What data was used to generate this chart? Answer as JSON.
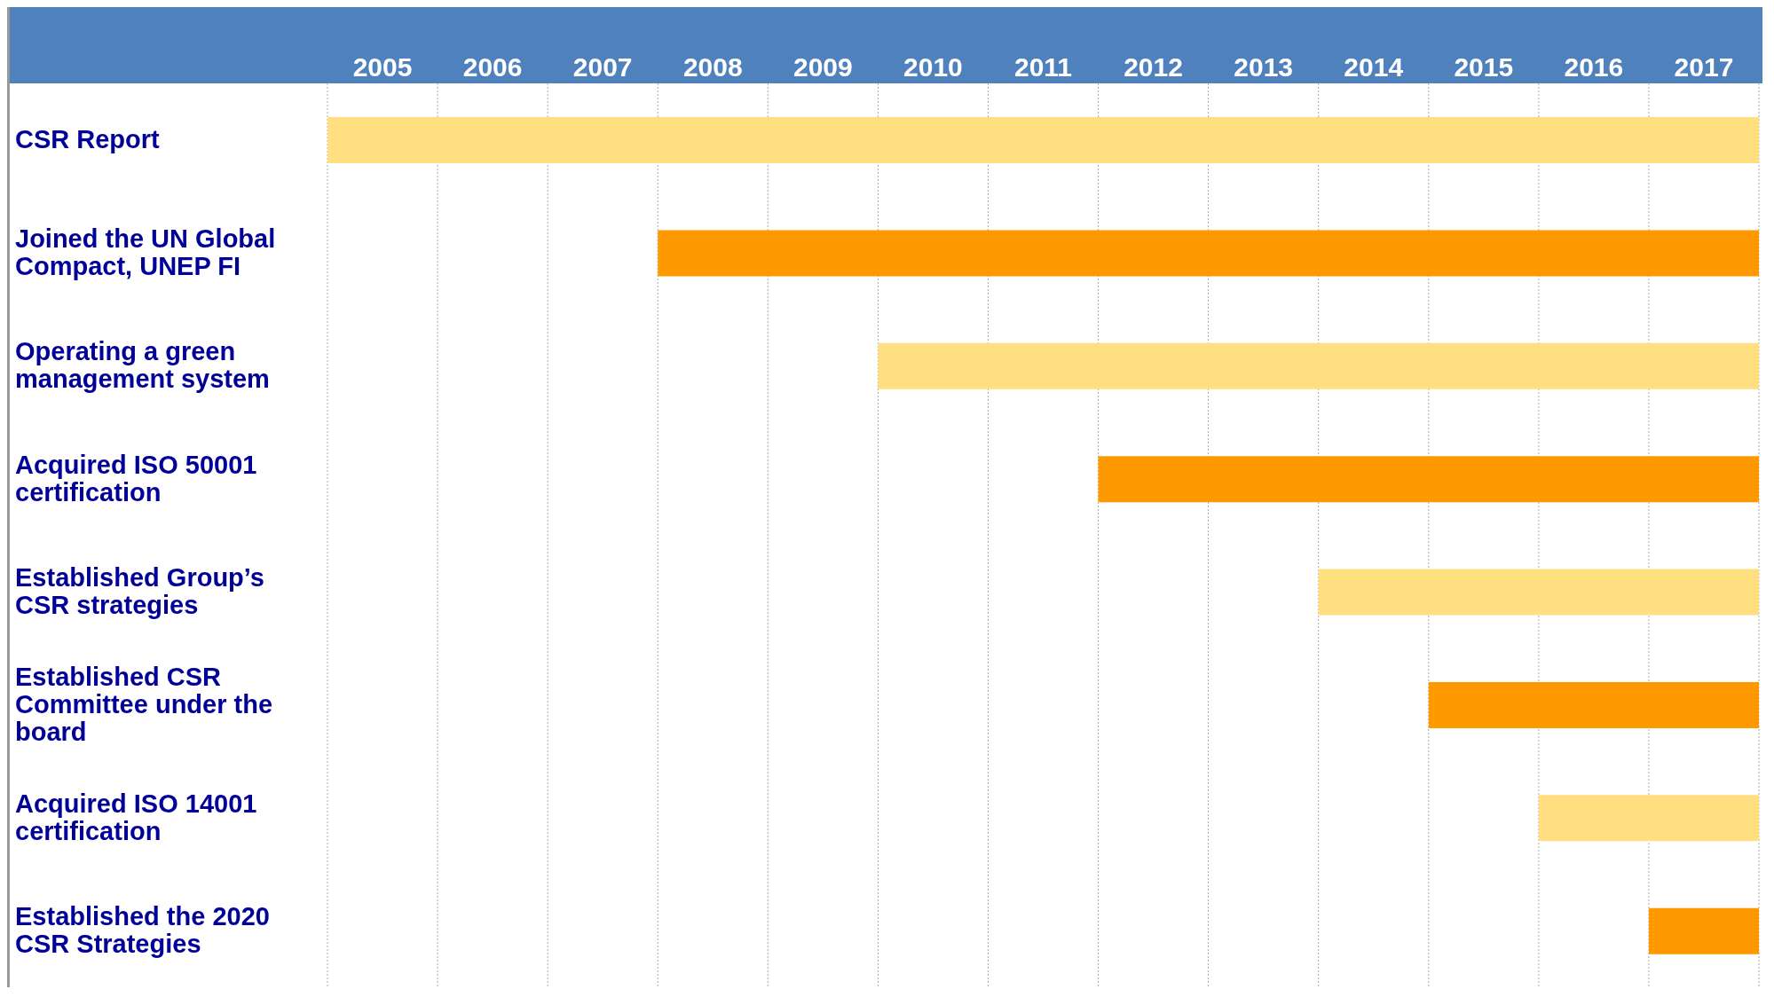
{
  "chart_data": {
    "type": "bar",
    "orientation": "horizontal",
    "categories": [
      "CSR Report",
      "Joined the UN Global Compact, UNEP FI",
      "Operating a green management system",
      "Acquired ISO 50001 certification",
      "Established Group’s CSR strategies",
      "Established CSR Committee under the board",
      "Acquired ISO 14001 certification",
      "Established the 2020 CSR Strategies"
    ],
    "values": [
      13,
      10,
      8,
      6,
      4,
      3,
      2,
      1
    ],
    "base": [
      2005,
      2008,
      2010,
      2012,
      2014,
      2015,
      2016,
      2017
    ],
    "colors": [
      "#ffdf80",
      "#ff9900",
      "#ffdf80",
      "#ff9900",
      "#ffdf80",
      "#ff9900",
      "#ffdf80",
      "#ff9900"
    ],
    "xlim": [
      2005,
      2018
    ],
    "xticks": [
      {
        "value": 2005,
        "label": null
      },
      {
        "value": 2005.5,
        "label": "2005"
      },
      {
        "value": 2006,
        "label": null
      },
      {
        "value": 2006.5,
        "label": "2006"
      },
      {
        "value": 2007,
        "label": null
      },
      {
        "value": 2007.5,
        "label": "2007"
      },
      {
        "value": 2008,
        "label": null
      },
      {
        "value": 2008.5,
        "label": "2008"
      },
      {
        "value": 2009,
        "label": null
      },
      {
        "value": 2009.5,
        "label": "2009"
      },
      {
        "value": 2010,
        "label": null
      },
      {
        "value": 2010.5,
        "label": "2010"
      },
      {
        "value": 2011,
        "label": null
      },
      {
        "value": 2011.5,
        "label": "2011"
      },
      {
        "value": 2012,
        "label": null
      },
      {
        "value": 2012.5,
        "label": "2012"
      },
      {
        "value": 2013,
        "label": null
      },
      {
        "value": 2013.5,
        "label": "2013"
      },
      {
        "value": 2014,
        "label": null
      },
      {
        "value": 2014.5,
        "label": "2014"
      },
      {
        "value": 2015,
        "label": null
      },
      {
        "value": 2015.5,
        "label": "2015"
      },
      {
        "value": 2016,
        "label": null
      },
      {
        "value": 2016.5,
        "label": "2016"
      },
      {
        "value": 2017,
        "label": null
      },
      {
        "value": 2017.5,
        "label": "2017"
      },
      {
        "value": 2018,
        "label": null
      }
    ],
    "grid": "x"
  }
}
